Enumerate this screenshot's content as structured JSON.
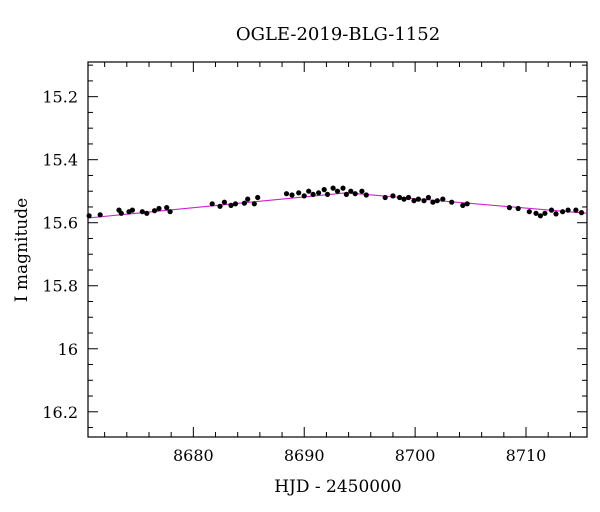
{
  "chart_data": {
    "type": "scatter",
    "title": "OGLE-2019-BLG-1152",
    "xlabel": "HJD - 2450000",
    "ylabel": "I magnitude",
    "xlim": [
      8670.5,
      8715.5
    ],
    "ylim": [
      16.28,
      15.09
    ],
    "y_inverted": true,
    "grid": false,
    "x_ticks": [
      8680,
      8690,
      8700,
      8710
    ],
    "x_tick_labels": [
      "8680",
      "8690",
      "8700",
      "8710"
    ],
    "y_ticks": [
      15.2,
      15.4,
      15.6,
      15.8,
      16,
      16.2
    ],
    "y_tick_labels": [
      "15.2",
      "15.4",
      "15.6",
      "15.8",
      "16",
      "16.2"
    ],
    "model_color": "#d020d0",
    "model": {
      "x": [
        8670.5,
        8693.8,
        8715.5
      ],
      "y": [
        15.585,
        15.505,
        15.57
      ]
    },
    "points": {
      "x": [
        8670.6,
        8671.6,
        8673.3,
        8673.5,
        8674.2,
        8674.5,
        8675.4,
        8675.8,
        8676.5,
        8676.9,
        8677.6,
        8677.9,
        8681.7,
        8682.4,
        8682.8,
        8683.4,
        8683.8,
        8684.6,
        8684.9,
        8685.5,
        8685.8,
        8688.4,
        8688.9,
        8689.5,
        8690.0,
        8690.4,
        8690.8,
        8691.3,
        8691.8,
        8692.1,
        8692.6,
        8693.0,
        8693.5,
        8693.8,
        8694.2,
        8694.6,
        8695.2,
        8695.6,
        8697.3,
        8698.0,
        8698.6,
        8699.0,
        8699.4,
        8699.9,
        8700.3,
        8700.8,
        8701.2,
        8701.6,
        8702.0,
        8702.5,
        8703.3,
        8704.3,
        8704.7,
        8708.5,
        8709.3,
        8710.3,
        8710.9,
        8711.3,
        8711.7,
        8712.3,
        8712.7,
        8713.3,
        8713.8,
        8714.5,
        8715.0
      ],
      "y": [
        15.578,
        15.575,
        15.56,
        15.57,
        15.565,
        15.56,
        15.565,
        15.57,
        15.562,
        15.555,
        15.552,
        15.565,
        15.54,
        15.548,
        15.535,
        15.545,
        15.54,
        15.538,
        15.525,
        15.54,
        15.52,
        15.508,
        15.512,
        15.505,
        15.515,
        15.5,
        15.51,
        15.505,
        15.495,
        15.51,
        15.49,
        15.5,
        15.49,
        15.51,
        15.5,
        15.508,
        15.5,
        15.512,
        15.52,
        15.515,
        15.52,
        15.525,
        15.52,
        15.53,
        15.525,
        15.53,
        15.52,
        15.535,
        15.53,
        15.525,
        15.535,
        15.545,
        15.54,
        15.552,
        15.555,
        15.565,
        15.57,
        15.578,
        15.57,
        15.56,
        15.572,
        15.565,
        15.56,
        15.56,
        15.568
      ]
    }
  }
}
